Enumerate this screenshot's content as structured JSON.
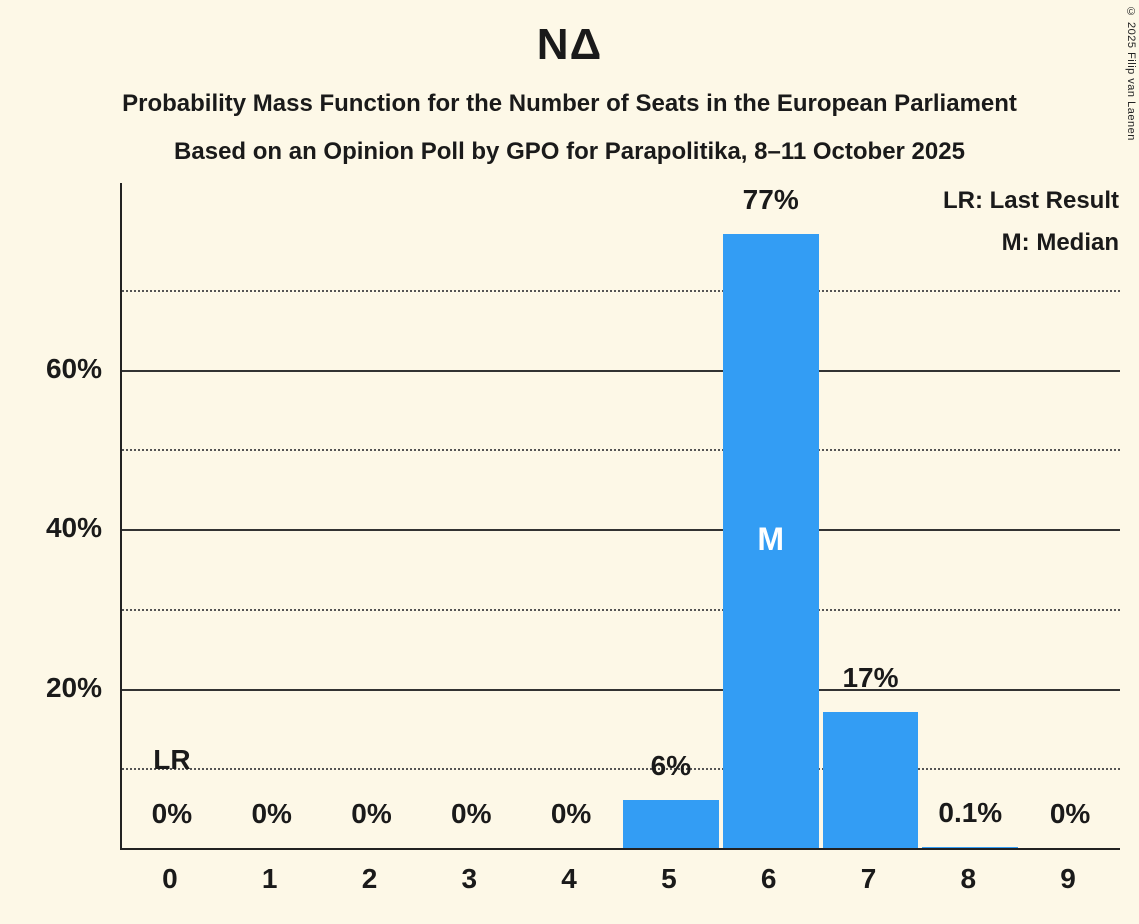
{
  "title": "ΝΔ",
  "subtitle1": "Probability Mass Function for the Number of Seats in the European Parliament",
  "subtitle2": "Based on an Opinion Poll by GPO for Parapolitika, 8–11 October 2025",
  "copyright": "© 2025 Filip van Laenen",
  "legend": {
    "lr": "LR: Last Result",
    "m": "M: Median"
  },
  "colors": {
    "background": "#FDF8E7",
    "bar": "#339DF4",
    "text": "#1A1A1A",
    "bar_inner_label": "#FFFFFF"
  },
  "chart_data": {
    "type": "bar",
    "title": "ΝΔ",
    "xlabel": "",
    "ylabel": "",
    "categories": [
      "0",
      "1",
      "2",
      "3",
      "4",
      "5",
      "6",
      "7",
      "8",
      "9"
    ],
    "values": [
      0,
      0,
      0,
      0,
      0,
      6,
      77,
      17,
      0.1,
      0
    ],
    "value_labels": [
      "0%",
      "0%",
      "0%",
      "0%",
      "0%",
      "6%",
      "77%",
      "17%",
      "0.1%",
      "0%"
    ],
    "ylim": [
      0,
      83.4
    ],
    "yticks_solid": [
      20,
      40,
      60
    ],
    "ytick_labels": [
      "20%",
      "40%",
      "60%"
    ],
    "yticks_dotted": [
      10,
      30,
      50,
      70
    ],
    "grid": true,
    "legend_position": "top-right",
    "median_index": 6,
    "median_label": "M",
    "last_result_index": 0,
    "last_result_label": "LR"
  }
}
